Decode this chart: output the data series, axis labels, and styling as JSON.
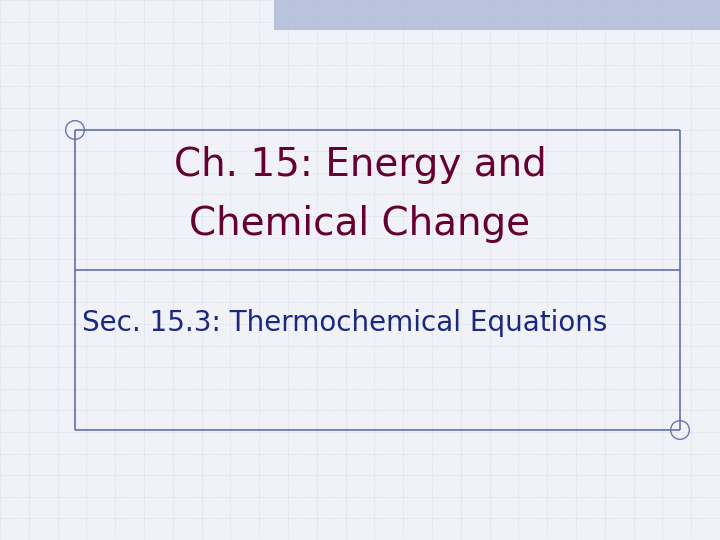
{
  "title_line1": "Ch. 15: Energy and",
  "title_line2": "Chemical Change",
  "subtitle": "Sec. 15.3: Thermochemical Equations",
  "background_color": "#f0f2f8",
  "grid_color": "#c0c8e0",
  "header_bar_color": "#b0bcd8",
  "title_color": "#660033",
  "subtitle_color": "#1a2880",
  "line_color": "#6070a8",
  "circle_color": "#6878a8",
  "title_fontsize": 28,
  "subtitle_fontsize": 20,
  "figsize": [
    7.2,
    5.4
  ],
  "dpi": 100
}
